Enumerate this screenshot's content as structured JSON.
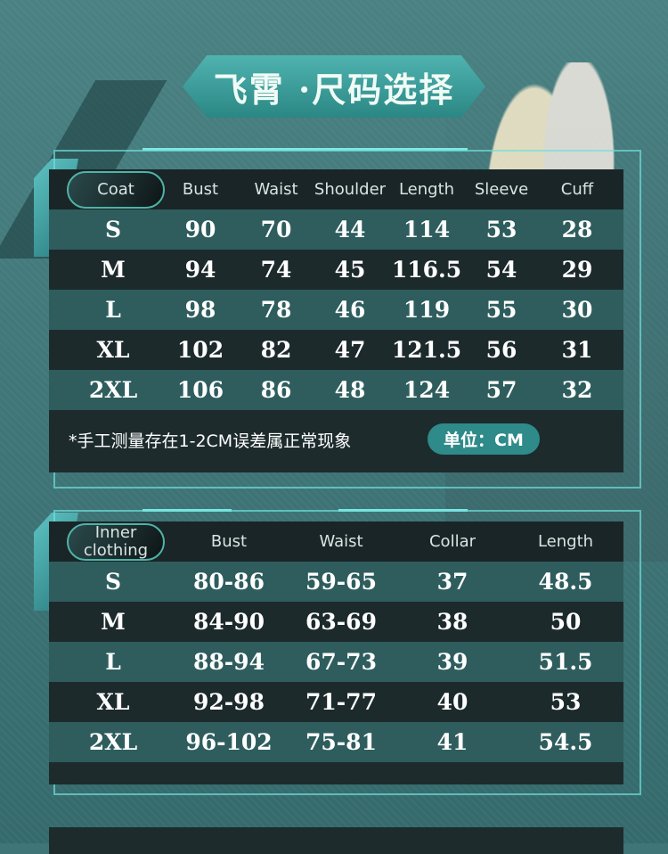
{
  "title": "飞霄 ·尺码选择",
  "coat": {
    "label": "Coat",
    "headers": [
      "Bust",
      "Waist",
      "Shoulder",
      "Length",
      "Sleeve",
      "Cuff"
    ],
    "rows": [
      [
        "S",
        "90",
        "70",
        "44",
        "114",
        "53",
        "28"
      ],
      [
        "M",
        "94",
        "74",
        "45",
        "116.5",
        "54",
        "29"
      ],
      [
        "L",
        "98",
        "78",
        "46",
        "119",
        "55",
        "30"
      ],
      [
        "XL",
        "102",
        "82",
        "47",
        "121.5",
        "56",
        "31"
      ],
      [
        "2XL",
        "106",
        "86",
        "48",
        "124",
        "57",
        "32"
      ]
    ],
    "note": "*手工测量存在1-2CM误差属正常现象",
    "unit": "单位：CM"
  },
  "inner": {
    "label": "Inner clothing",
    "headers": [
      "Bust",
      "Waist",
      "Collar",
      "Length"
    ],
    "rows": [
      [
        "S",
        "80-86",
        "59-65",
        "37",
        "48.5"
      ],
      [
        "M",
        "84-90",
        "63-69",
        "38",
        "50"
      ],
      [
        "L",
        "88-94",
        "67-73",
        "39",
        "51.5"
      ],
      [
        "XL",
        "92-98",
        "71-77",
        "40",
        "53"
      ],
      [
        "2XL",
        "96-102",
        "75-81",
        "41",
        "54.5"
      ]
    ]
  }
}
